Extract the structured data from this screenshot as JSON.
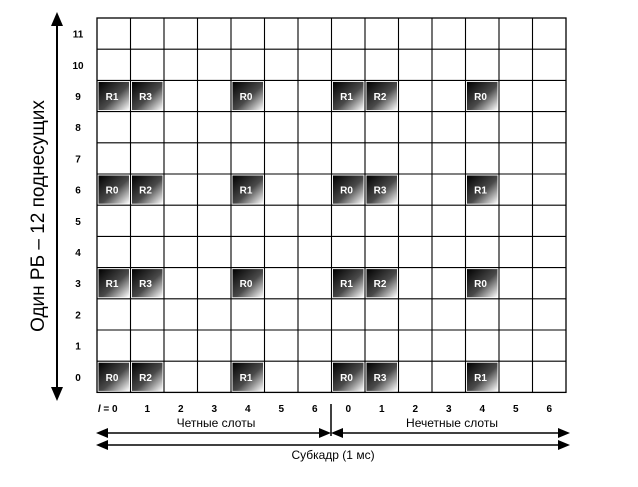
{
  "axis_title": "Один РБ – 12 поднесущих",
  "subcarriers": [
    "0",
    "1",
    "2",
    "3",
    "4",
    "5",
    "6",
    "7",
    "8",
    "9",
    "10",
    "11"
  ],
  "l_prefix": "l",
  "symbols": [
    "0",
    "1",
    "2",
    "3",
    "4",
    "5",
    "6",
    "0",
    "1",
    "2",
    "3",
    "4",
    "5",
    "6"
  ],
  "even_slots_label": "Четные слоты",
  "odd_slots_label": "Нечетные слоты",
  "subframe_label": "Субкадр (1 мс)",
  "reference_signals": [
    {
      "subcarrier": 9,
      "symbol_index": 0,
      "label": "R1"
    },
    {
      "subcarrier": 9,
      "symbol_index": 1,
      "label": "R3"
    },
    {
      "subcarrier": 9,
      "symbol_index": 4,
      "label": "R0"
    },
    {
      "subcarrier": 9,
      "symbol_index": 7,
      "label": "R1"
    },
    {
      "subcarrier": 9,
      "symbol_index": 8,
      "label": "R2"
    },
    {
      "subcarrier": 9,
      "symbol_index": 11,
      "label": "R0"
    },
    {
      "subcarrier": 6,
      "symbol_index": 0,
      "label": "R0"
    },
    {
      "subcarrier": 6,
      "symbol_index": 1,
      "label": "R2"
    },
    {
      "subcarrier": 6,
      "symbol_index": 4,
      "label": "R1"
    },
    {
      "subcarrier": 6,
      "symbol_index": 7,
      "label": "R0"
    },
    {
      "subcarrier": 6,
      "symbol_index": 8,
      "label": "R3"
    },
    {
      "subcarrier": 6,
      "symbol_index": 11,
      "label": "R1"
    },
    {
      "subcarrier": 3,
      "symbol_index": 0,
      "label": "R1"
    },
    {
      "subcarrier": 3,
      "symbol_index": 1,
      "label": "R3"
    },
    {
      "subcarrier": 3,
      "symbol_index": 4,
      "label": "R0"
    },
    {
      "subcarrier": 3,
      "symbol_index": 7,
      "label": "R1"
    },
    {
      "subcarrier": 3,
      "symbol_index": 8,
      "label": "R2"
    },
    {
      "subcarrier": 3,
      "symbol_index": 11,
      "label": "R0"
    },
    {
      "subcarrier": 0,
      "symbol_index": 0,
      "label": "R0"
    },
    {
      "subcarrier": 0,
      "symbol_index": 1,
      "label": "R2"
    },
    {
      "subcarrier": 0,
      "symbol_index": 4,
      "label": "R1"
    },
    {
      "subcarrier": 0,
      "symbol_index": 7,
      "label": "R0"
    },
    {
      "subcarrier": 0,
      "symbol_index": 8,
      "label": "R3"
    },
    {
      "subcarrier": 0,
      "symbol_index": 11,
      "label": "R1"
    }
  ],
  "colors": {
    "grid": "#000000",
    "rs_dark": "#000000",
    "rs_light": "#ffffff",
    "text": "#000000"
  }
}
